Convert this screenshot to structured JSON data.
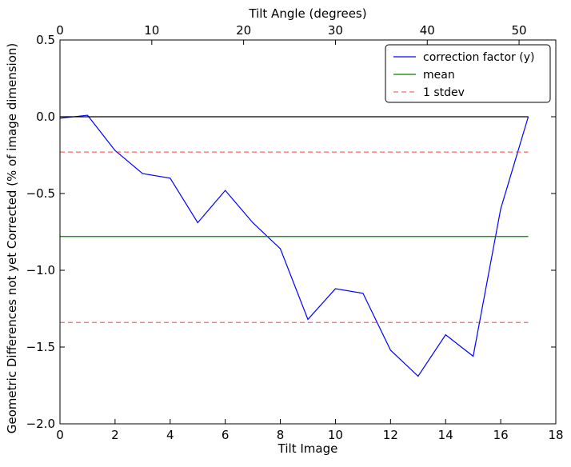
{
  "chart_data": {
    "type": "line",
    "title": "",
    "xlabel": "Tilt Image",
    "ylabel": "Geometric Differences not yet Corrected (% of image dimension)",
    "x2label": "Tilt Angle (degrees)",
    "xlim": [
      0,
      18
    ],
    "ylim": [
      -2.0,
      0.5
    ],
    "x2lim": [
      0,
      54
    ],
    "xticks": [
      0,
      2,
      4,
      6,
      8,
      10,
      12,
      14,
      16,
      18
    ],
    "yticks": [
      0.5,
      0.0,
      -0.5,
      -1.0,
      -1.5,
      -2.0
    ],
    "x2ticks": [
      0,
      10,
      20,
      30,
      40,
      50
    ],
    "xtick_labels": [
      "0",
      "2",
      "4",
      "6",
      "8",
      "10",
      "12",
      "14",
      "16",
      "18"
    ],
    "ytick_labels": [
      "0.5",
      "0.0",
      "−0.5",
      "−1.0",
      "−1.5",
      "−2.0"
    ],
    "x2tick_labels": [
      "0",
      "10",
      "20",
      "30",
      "40",
      "50"
    ],
    "grid": false,
    "legend_position": "top-right",
    "series": [
      {
        "name": "correction factor (y)",
        "color": "#0000ff",
        "style": "solid",
        "x": [
          0,
          1,
          2,
          3,
          4,
          5,
          6,
          7,
          8,
          9,
          10,
          11,
          12,
          13,
          14,
          15,
          16,
          17
        ],
        "y": [
          -0.01,
          0.01,
          -0.22,
          -0.37,
          -0.4,
          -0.69,
          -0.48,
          -0.69,
          -0.86,
          -1.32,
          -1.12,
          -1.15,
          -1.52,
          -1.69,
          -1.42,
          -1.56,
          -0.6,
          0.0
        ]
      },
      {
        "name": "mean",
        "color": "#008000",
        "style": "solid",
        "x": [
          0,
          17
        ],
        "y": [
          -0.78,
          -0.78
        ]
      },
      {
        "name": "1 stdev",
        "color": "#ff0000",
        "style": "dashed",
        "x": [
          0,
          17
        ],
        "y": [
          -0.23,
          -0.23
        ]
      },
      {
        "name": "",
        "color": "#ff0000",
        "style": "dashed",
        "x": [
          0,
          17
        ],
        "y": [
          -1.34,
          -1.34
        ]
      },
      {
        "name": "",
        "color": "#000000",
        "style": "solid",
        "x": [
          0,
          17
        ],
        "y": [
          0.0,
          0.0
        ]
      }
    ]
  }
}
